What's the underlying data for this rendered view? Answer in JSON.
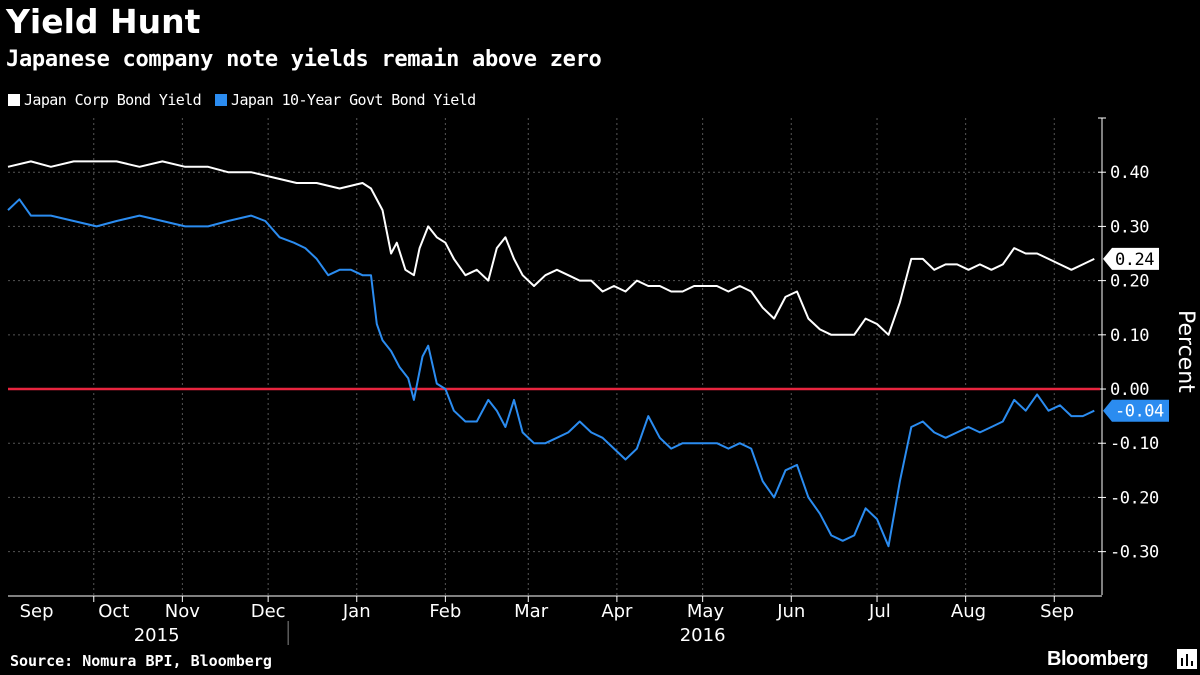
{
  "title": "Yield Hunt",
  "subtitle": "Japanese company note yields remain above zero",
  "source": "Source: Nomura BPI, Bloomberg",
  "brand": "Bloomberg",
  "legend": [
    {
      "label": "Japan Corp Bond Yield",
      "color": "#ffffff"
    },
    {
      "label": "Japan 10-Year Govt Bond Yield",
      "color": "#2b8cf0"
    }
  ],
  "chart_data": {
    "type": "line",
    "ylabel": "Percent",
    "ylim": [
      -0.38,
      0.5
    ],
    "yticks": [
      0.4,
      0.3,
      0.2,
      0.1,
      0.0,
      -0.1,
      -0.2,
      -0.3
    ],
    "ytick_labels": [
      "0.40",
      "0.30",
      "0.20",
      "0.10",
      "0.00",
      "-0.10",
      "-0.20",
      "-0.30"
    ],
    "x_range": [
      0,
      382
    ],
    "x_note": "x values are days since 2015-09-01",
    "month_labels": [
      {
        "label": "Sep",
        "x": 10
      },
      {
        "label": "Oct",
        "x": 37
      },
      {
        "label": "Nov",
        "x": 61
      },
      {
        "label": "Dec",
        "x": 91
      },
      {
        "label": "Jan",
        "x": 122
      },
      {
        "label": "Feb",
        "x": 153
      },
      {
        "label": "Mar",
        "x": 183
      },
      {
        "label": "Apr",
        "x": 213
      },
      {
        "label": "May",
        "x": 244
      },
      {
        "label": "Jun",
        "x": 274
      },
      {
        "label": "Jul",
        "x": 305
      },
      {
        "label": "Aug",
        "x": 336
      },
      {
        "label": "Sep",
        "x": 367
      }
    ],
    "month_ticks": [
      30,
      61,
      91,
      122,
      153,
      182,
      213,
      243,
      274,
      304,
      335,
      366
    ],
    "year_labels": [
      {
        "label": "2015",
        "x": 52
      },
      {
        "label": "2016",
        "x": 243
      }
    ],
    "year_divider_x": 98,
    "reference_line": {
      "y": 0.0,
      "color": "#e8253f"
    },
    "series": [
      {
        "name": "Japan Corp Bond Yield",
        "color": "#ffffff",
        "last_value_label": "0.24",
        "x": [
          0,
          8,
          15,
          23,
          31,
          38,
          46,
          54,
          62,
          70,
          77,
          85,
          93,
          101,
          108,
          116,
          124,
          127,
          131,
          134,
          136,
          139,
          142,
          144,
          147,
          150,
          153,
          156,
          160,
          164,
          168,
          171,
          174,
          177,
          180,
          184,
          188,
          192,
          196,
          200,
          204,
          208,
          212,
          216,
          220,
          224,
          228,
          232,
          236,
          240,
          244,
          248,
          252,
          256,
          260,
          264,
          268,
          272,
          276,
          280,
          284,
          288,
          292,
          296,
          300,
          304,
          308,
          312,
          316,
          320,
          324,
          328,
          332,
          336,
          340,
          344,
          348,
          352,
          356,
          360,
          364,
          368,
          372,
          376,
          380
        ],
        "values": [
          0.41,
          0.42,
          0.41,
          0.42,
          0.42,
          0.42,
          0.41,
          0.42,
          0.41,
          0.41,
          0.4,
          0.4,
          0.39,
          0.38,
          0.38,
          0.37,
          0.38,
          0.37,
          0.33,
          0.25,
          0.27,
          0.22,
          0.21,
          0.26,
          0.3,
          0.28,
          0.27,
          0.24,
          0.21,
          0.22,
          0.2,
          0.26,
          0.28,
          0.24,
          0.21,
          0.19,
          0.21,
          0.22,
          0.21,
          0.2,
          0.2,
          0.18,
          0.19,
          0.18,
          0.2,
          0.19,
          0.19,
          0.18,
          0.18,
          0.19,
          0.19,
          0.19,
          0.18,
          0.19,
          0.18,
          0.15,
          0.13,
          0.17,
          0.18,
          0.13,
          0.11,
          0.1,
          0.1,
          0.1,
          0.13,
          0.12,
          0.1,
          0.16,
          0.24,
          0.24,
          0.22,
          0.23,
          0.23,
          0.22,
          0.23,
          0.22,
          0.23,
          0.26,
          0.25,
          0.25,
          0.24,
          0.23,
          0.22,
          0.23,
          0.24
        ]
      },
      {
        "name": "Japan 10-Year Govt Bond Yield",
        "color": "#2b8cf0",
        "last_value_label": "-0.04",
        "x": [
          0,
          4,
          8,
          15,
          23,
          31,
          38,
          46,
          54,
          62,
          70,
          77,
          85,
          90,
          95,
          100,
          104,
          108,
          112,
          116,
          120,
          124,
          127,
          129,
          131,
          134,
          137,
          140,
          142,
          145,
          147,
          150,
          153,
          156,
          160,
          164,
          168,
          171,
          174,
          177,
          180,
          184,
          188,
          192,
          196,
          200,
          204,
          208,
          212,
          216,
          220,
          224,
          228,
          232,
          236,
          240,
          244,
          248,
          252,
          256,
          260,
          264,
          268,
          272,
          276,
          280,
          284,
          288,
          292,
          296,
          300,
          304,
          308,
          312,
          316,
          320,
          324,
          328,
          332,
          336,
          340,
          344,
          348,
          352,
          356,
          360,
          364,
          368,
          372,
          376,
          380
        ],
        "values": [
          0.33,
          0.35,
          0.32,
          0.32,
          0.31,
          0.3,
          0.31,
          0.32,
          0.31,
          0.3,
          0.3,
          0.31,
          0.32,
          0.31,
          0.28,
          0.27,
          0.26,
          0.24,
          0.21,
          0.22,
          0.22,
          0.21,
          0.21,
          0.12,
          0.09,
          0.07,
          0.04,
          0.02,
          -0.02,
          0.06,
          0.08,
          0.01,
          0.0,
          -0.04,
          -0.06,
          -0.06,
          -0.02,
          -0.04,
          -0.07,
          -0.02,
          -0.08,
          -0.1,
          -0.1,
          -0.09,
          -0.08,
          -0.06,
          -0.08,
          -0.09,
          -0.11,
          -0.13,
          -0.11,
          -0.05,
          -0.09,
          -0.11,
          -0.1,
          -0.1,
          -0.1,
          -0.1,
          -0.11,
          -0.1,
          -0.11,
          -0.17,
          -0.2,
          -0.15,
          -0.14,
          -0.2,
          -0.23,
          -0.27,
          -0.28,
          -0.27,
          -0.22,
          -0.24,
          -0.29,
          -0.17,
          -0.07,
          -0.06,
          -0.08,
          -0.09,
          -0.08,
          -0.07,
          -0.08,
          -0.07,
          -0.06,
          -0.02,
          -0.04,
          -0.01,
          -0.04,
          -0.03,
          -0.05,
          -0.05,
          -0.04
        ]
      }
    ]
  }
}
